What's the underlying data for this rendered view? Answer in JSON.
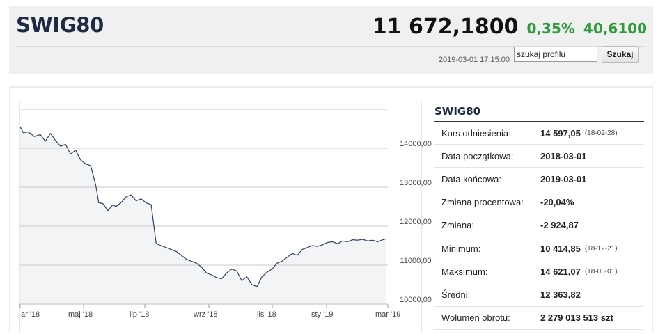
{
  "header": {
    "symbol": "SWIG80",
    "price": "11 672,1800",
    "change_pct": "0,35%",
    "change_abs": "40,6100",
    "timestamp": "2019-03-01 17:15:00",
    "search_value": "szukaj profilu",
    "search_button": "Szukaj"
  },
  "colors": {
    "positive": "#2e9a3b",
    "line": "#2c3e60",
    "area": "#f3f4f6",
    "grid": "#c9c9c9"
  },
  "stats": {
    "title": "SWIG80",
    "rows": [
      {
        "label": "Kurs odniesienia:",
        "value": "14 597,05",
        "note": "(18-02-28)"
      },
      {
        "label": "Data początkowa:",
        "value": "2018-03-01",
        "note": ""
      },
      {
        "label": "Data końcowa:",
        "value": "2019-03-01",
        "note": ""
      },
      {
        "label": "Zmiana procentowa:",
        "value": "-20,04%",
        "note": ""
      },
      {
        "label": "Zmiana:",
        "value": "-2 924,87",
        "note": ""
      },
      {
        "label": "Minimum:",
        "value": "10 414,85",
        "note": "(18-12-21)"
      },
      {
        "label": "Maksimum:",
        "value": "14 621,07",
        "note": "(18-03-01)"
      },
      {
        "label": "Średni:",
        "value": "12 363,82",
        "note": ""
      },
      {
        "label": "Wolumen obrotu:",
        "value": "2 279 013 513 szt",
        "note": ""
      }
    ]
  },
  "chart_data": {
    "type": "area",
    "x_ticks": [
      "ar '18",
      "maj '18",
      "lip '18",
      "wrz '18",
      "lis '18",
      "sty '19",
      "mar '19"
    ],
    "y_ticks": [
      "14000,00",
      "13000,00",
      "12000,00",
      "11000,00",
      "10000,00"
    ],
    "y_tick_values": [
      14000,
      13000,
      12000,
      11000,
      10000
    ],
    "ylim": [
      10000,
      15000
    ],
    "xlim": [
      0,
      365
    ],
    "series": [
      {
        "x": [
          0,
          3,
          8,
          14,
          20,
          25,
          30,
          35,
          40,
          45,
          50,
          55,
          60,
          65,
          70,
          75,
          78,
          82,
          87,
          92,
          95,
          100,
          105,
          110,
          115,
          120,
          125,
          130,
          135,
          140,
          145,
          150,
          155,
          160,
          165,
          170,
          175,
          180,
          185,
          190,
          195,
          200,
          205,
          210,
          215,
          220,
          225,
          230,
          235,
          240,
          245,
          250,
          255,
          260,
          265,
          270,
          275,
          280,
          285,
          290,
          295,
          300,
          305,
          310,
          315,
          320,
          325,
          330,
          335,
          340,
          345,
          350,
          355,
          360,
          363
        ],
        "y": [
          14550,
          14400,
          14420,
          14300,
          14350,
          14180,
          14380,
          14200,
          14050,
          14100,
          13850,
          13950,
          13700,
          13600,
          13550,
          13050,
          12600,
          12580,
          12400,
          12550,
          12500,
          12600,
          12750,
          12800,
          12650,
          12700,
          12600,
          12550,
          11550,
          11500,
          11450,
          11400,
          11350,
          11250,
          11150,
          11100,
          11050,
          10950,
          10800,
          10750,
          10680,
          10650,
          10800,
          10900,
          10850,
          10600,
          10700,
          10500,
          10450,
          10700,
          10820,
          10900,
          11050,
          11100,
          11200,
          11300,
          11250,
          11400,
          11450,
          11500,
          11480,
          11520,
          11580,
          11600,
          11550,
          11620,
          11600,
          11650,
          11640,
          11660,
          11620,
          11640,
          11600,
          11650,
          11672
        ]
      }
    ],
    "grid": true
  }
}
